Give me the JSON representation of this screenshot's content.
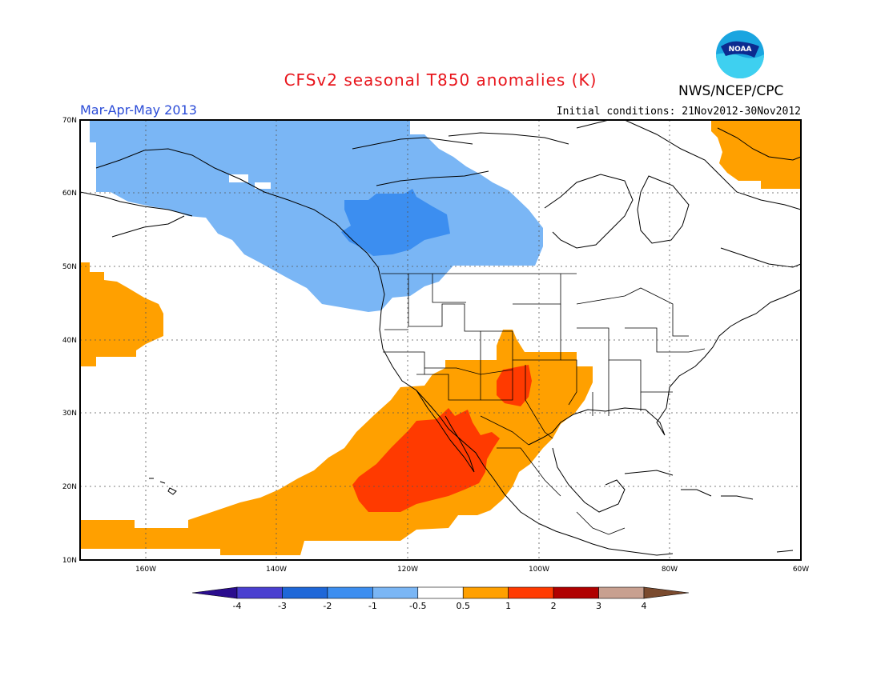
{
  "title": "CFSv2 seasonal T850 anomalies (K)",
  "agency": "NWS/NCEP/CPC",
  "logo_text": "NOAA",
  "period": "Mar-Apr-May 2013",
  "initial_conditions": "Initial conditions: 21Nov2012-30Nov2012",
  "map": {
    "lon_range": [
      -170,
      -60
    ],
    "lat_range": [
      10,
      70
    ],
    "lat_labels": [
      "70N",
      "60N",
      "50N",
      "40N",
      "30N",
      "20N",
      "10N"
    ],
    "lon_labels": [
      "160W",
      "140W",
      "120W",
      "100W",
      "80W",
      "60W"
    ],
    "grid": "dotted"
  },
  "legend": {
    "labels": [
      "-4",
      "-3",
      "-2",
      "-1",
      "-0.5",
      "0.5",
      "1",
      "2",
      "3",
      "4"
    ],
    "colors": [
      "#2a0d8e",
      "#4a3fd0",
      "#1e67d8",
      "#3c8ef0",
      "#7ab6f5",
      "#ffffff",
      "#ffa000",
      "#ff3a00",
      "#b00000",
      "#c8a090",
      "#7a4a2e"
    ]
  },
  "colors": {
    "neg1": "#7ab6f5",
    "neg2": "#3c8ef0",
    "pos1": "#ffa000",
    "pos2": "#ff3a00"
  }
}
